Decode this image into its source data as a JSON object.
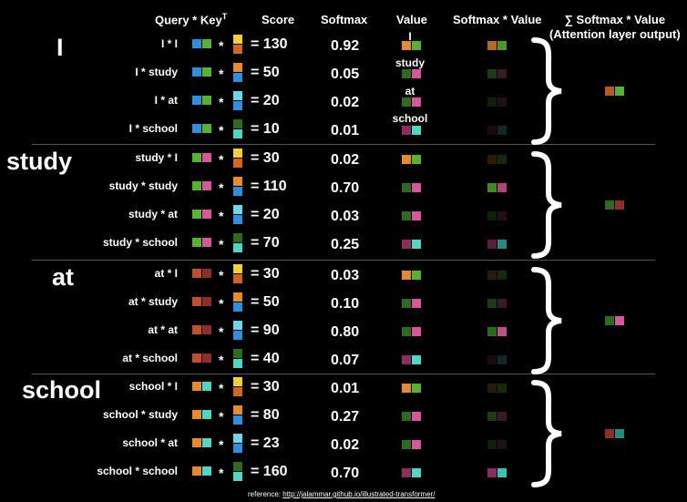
{
  "headers": {
    "query_key": "Query * Key",
    "transpose_sup": "T",
    "score": "Score",
    "softmax": "Softmax",
    "value": "Value",
    "softmax_value": "Softmax * Value",
    "sum_symbol": "∑",
    "sum_line1": "Softmax * Value",
    "sum_line2": "(Attention layer output)"
  },
  "value_labels": [
    "I",
    "study",
    "at",
    "school"
  ],
  "colors": {
    "I": [
      "#e8892e",
      "#57b230"
    ],
    "study": [
      "#57b230",
      "#d8579c"
    ],
    "at": [
      "#c14f2e",
      "#8c2e2a"
    ],
    "school": [
      "#e8892e",
      "#4fd6c5"
    ],
    "key_I": [
      "#f0cf3a",
      "#d4641e"
    ],
    "key_study": [
      "#e8892e",
      "#2f8fdf"
    ],
    "key_at": [
      "#6fd6e8",
      "#2f8fdf"
    ],
    "key_school": [
      "#2e6b1e",
      "#4fd6c5"
    ],
    "query_I": [
      "#2f8fdf",
      "#57b230"
    ],
    "query_study": [
      "#57b230",
      "#d8579c"
    ],
    "query_at": [
      "#c14f2e",
      "#8c2e2a"
    ],
    "query_school": [
      "#e8892e",
      "#4fd6c5"
    ],
    "val_I": [
      "#e8892e",
      "#57b230"
    ],
    "val_study": [
      "#2e6b1e",
      "#d8579c"
    ],
    "val_at": [
      "#2e6b1e",
      "#d8579c"
    ],
    "val_school": [
      "#8c2e5a",
      "#4fd6c5"
    ]
  },
  "sections": [
    {
      "word": "I",
      "rows": [
        {
          "label": "I * I",
          "score": "= 130",
          "softmax": "0.92",
          "key": "key_I",
          "value": "val_I",
          "sv": [
            "#b56a24",
            "#4a9a28"
          ]
        },
        {
          "label": "I * study",
          "score": "= 50",
          "softmax": "0.05",
          "key": "key_study",
          "value": "val_study",
          "sv": [
            "#1f3a14",
            "#3a1a2a"
          ]
        },
        {
          "label": "I * at",
          "score": "= 20",
          "softmax": "0.02",
          "key": "key_at",
          "value": "val_at",
          "sv": [
            "#0f1f0a",
            "#1f0f16"
          ]
        },
        {
          "label": "I * school",
          "score": "= 10",
          "softmax": "0.01",
          "key": "key_school",
          "value": "val_school",
          "sv": [
            "#1a0a12",
            "#0f2a26"
          ]
        }
      ],
      "output": [
        "#c1552a",
        "#57b230"
      ]
    },
    {
      "word": "study",
      "rows": [
        {
          "label": "study * I",
          "score": "= 30",
          "softmax": "0.02",
          "key": "key_I",
          "value": "val_I",
          "sv": [
            "#2a1a0a",
            "#142a0a"
          ]
        },
        {
          "label": "study * study",
          "score": "= 110",
          "softmax": "0.70",
          "key": "key_study",
          "value": "val_study",
          "sv": [
            "#3d8a22",
            "#b0447c"
          ]
        },
        {
          "label": "study * at",
          "score": "= 20",
          "softmax": "0.03",
          "key": "key_at",
          "value": "val_at",
          "sv": [
            "#0f1f0a",
            "#1f0f16"
          ]
        },
        {
          "label": "study * school",
          "score": "= 70",
          "softmax": "0.25",
          "key": "key_school",
          "value": "val_school",
          "sv": [
            "#5a1e3a",
            "#2a8a80"
          ]
        }
      ],
      "output": [
        "#2e6b1e",
        "#8c2e2a"
      ]
    },
    {
      "word": "at",
      "rows": [
        {
          "label": "at * I",
          "score": "= 30",
          "softmax": "0.03",
          "key": "key_I",
          "value": "val_I",
          "sv": [
            "#2a1a0a",
            "#142a0a"
          ]
        },
        {
          "label": "at * study",
          "score": "= 50",
          "softmax": "0.10",
          "key": "key_study",
          "value": "val_study",
          "sv": [
            "#1f3a14",
            "#3a1a2a"
          ]
        },
        {
          "label": "at * at",
          "score": "= 90",
          "softmax": "0.80",
          "key": "key_at",
          "value": "val_at",
          "sv": [
            "#2a6a1a",
            "#c0508a"
          ]
        },
        {
          "label": "at * school",
          "score": "= 40",
          "softmax": "0.07",
          "key": "key_school",
          "value": "val_school",
          "sv": [
            "#1a0a12",
            "#0f2a26"
          ]
        }
      ],
      "output": [
        "#2e6b1e",
        "#d8579c"
      ]
    },
    {
      "word": "school",
      "rows": [
        {
          "label": "school * I",
          "score": "= 30",
          "softmax": "0.01",
          "key": "key_I",
          "value": "val_I",
          "sv": [
            "#2a1a0a",
            "#142a0a"
          ]
        },
        {
          "label": "school * study",
          "score": "= 80",
          "softmax": "0.27",
          "key": "key_study",
          "value": "val_study",
          "sv": [
            "#1f3a14",
            "#3a1a2a"
          ]
        },
        {
          "label": "school * at",
          "score": "= 23",
          "softmax": "0.02",
          "key": "key_at",
          "value": "val_at",
          "sv": [
            "#0f1f0a",
            "#1f0f16"
          ]
        },
        {
          "label": "school * school",
          "score": "= 160",
          "softmax": "0.70",
          "key": "key_school",
          "value": "val_school",
          "sv": [
            "#8c2e5a",
            "#3fbfb0"
          ]
        }
      ],
      "output": [
        "#8c2e2a",
        "#2a8a80"
      ]
    }
  ],
  "reference": {
    "prefix": "reference: ",
    "link": "http://jalammar.github.io/illustrated-transformer/"
  }
}
